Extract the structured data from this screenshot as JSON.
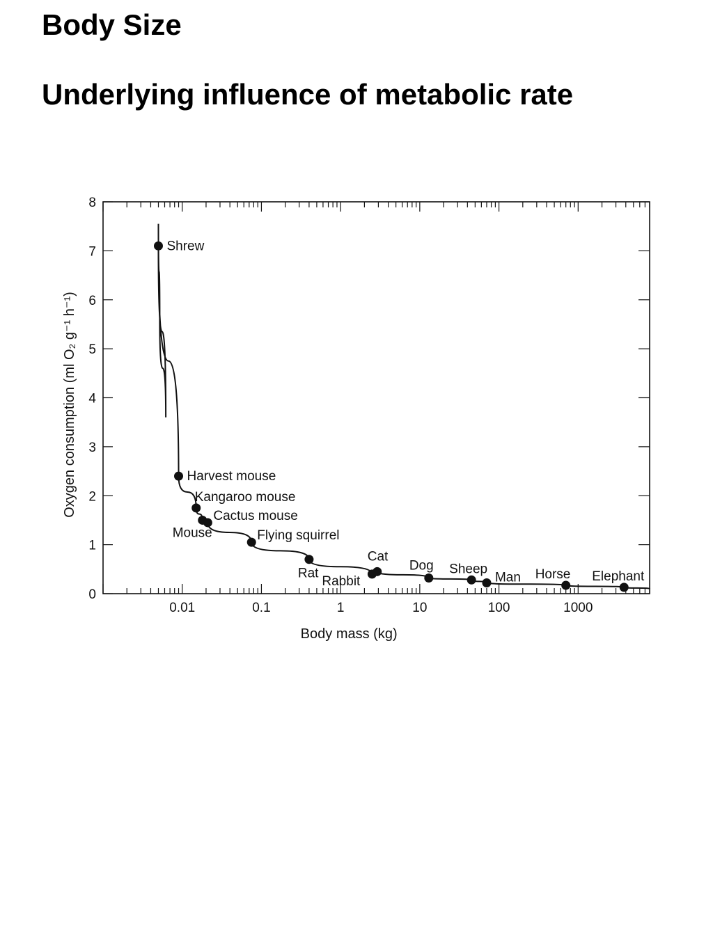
{
  "slide": {
    "title": "Body Size",
    "subtitle": "Underlying influence of metabolic rate"
  },
  "colors": {
    "ink": "#111111",
    "background": "#ffffff"
  },
  "chart_data": {
    "type": "scatter",
    "xlabel": "Body mass (kg)",
    "ylabel": "Oxygen consumption (ml O₂ g⁻¹ h⁻¹)",
    "x_scale": "log",
    "xlim": [
      0.001,
      8000
    ],
    "ylim": [
      0,
      8
    ],
    "x_ticks": [
      "0.01",
      "0.1",
      "1",
      "10",
      "100",
      "1000"
    ],
    "y_ticks": [
      "0",
      "1",
      "2",
      "3",
      "4",
      "5",
      "6",
      "7",
      "8"
    ],
    "grid": false,
    "legend": "none",
    "fit_curve": true,
    "points": [
      {
        "label": "Shrew",
        "x": 0.005,
        "y": 7.1
      },
      {
        "label": "Harvest mouse",
        "x": 0.009,
        "y": 2.4
      },
      {
        "label": "Kangaroo  mouse",
        "x": 0.015,
        "y": 1.75
      },
      {
        "label": "Mouse",
        "x": 0.018,
        "y": 1.5
      },
      {
        "label": "Cactus mouse",
        "x": 0.021,
        "y": 1.45
      },
      {
        "label": "Flying squirrel",
        "x": 0.075,
        "y": 1.05
      },
      {
        "label": "Rat",
        "x": 0.4,
        "y": 0.7
      },
      {
        "label": "Rabbit",
        "x": 2.5,
        "y": 0.4
      },
      {
        "label": "Cat",
        "x": 2.9,
        "y": 0.45
      },
      {
        "label": "Dog",
        "x": 13,
        "y": 0.32
      },
      {
        "label": "Sheep",
        "x": 45,
        "y": 0.28
      },
      {
        "label": "Man",
        "x": 70,
        "y": 0.22
      },
      {
        "label": "Horse",
        "x": 700,
        "y": 0.17
      },
      {
        "label": "Elephant",
        "x": 3800,
        "y": 0.13
      }
    ]
  }
}
